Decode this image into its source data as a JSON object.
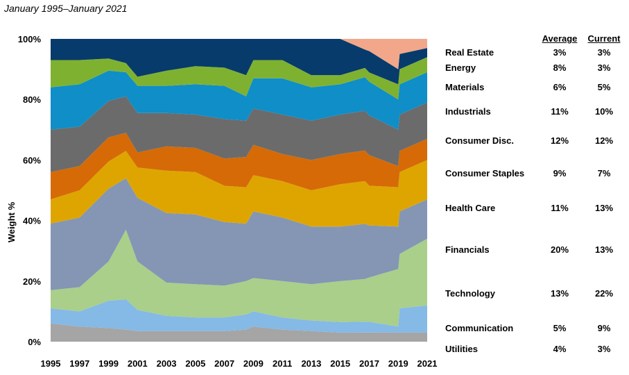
{
  "subtitle": "January 1995–January 2021",
  "chart_data": {
    "type": "area",
    "stacked": true,
    "normalized": true,
    "x_range": [
      1995,
      2021
    ],
    "ylabel": "Weight %",
    "ylim": [
      0,
      100
    ],
    "x_ticks": [
      "1995",
      "1997",
      "1999",
      "2001",
      "2003",
      "2005",
      "2007",
      "2009",
      "2011",
      "2013",
      "2015",
      "2017",
      "2019",
      "2021"
    ],
    "y_ticks": [
      "0%",
      "20%",
      "40%",
      "60%",
      "80%",
      "100%"
    ],
    "x": [
      1995,
      1997,
      1999,
      2000.2,
      2001,
      2003,
      2005,
      2007,
      2008.5,
      2009,
      2011,
      2013,
      2015,
      2016.7,
      2017,
      2019,
      2019.1,
      2021
    ],
    "series": [
      {
        "name": "Utilities",
        "color": "#a5a5a5",
        "values": [
          6,
          5,
          4.5,
          4,
          3.5,
          3.5,
          3.5,
          3.5,
          4,
          5,
          4,
          3.5,
          3,
          3,
          3,
          3,
          3,
          3
        ]
      },
      {
        "name": "Communication",
        "color": "#85b9e6",
        "values": [
          5,
          5,
          9,
          10,
          7,
          5,
          4.5,
          4.5,
          5,
          5,
          4,
          3.5,
          3.5,
          3.5,
          3.5,
          2,
          8,
          9
        ]
      },
      {
        "name": "Technology",
        "color": "#a9cf8a",
        "values": [
          6,
          8,
          13,
          23,
          16,
          11,
          11,
          10.5,
          11,
          11,
          12,
          12,
          13.5,
          14,
          14.5,
          19,
          18,
          22
        ]
      },
      {
        "name": "Financials",
        "color": "#8496b4",
        "values": [
          22,
          23,
          24,
          17,
          21,
          23,
          23,
          21,
          19,
          22,
          21,
          19,
          18,
          18,
          17,
          14,
          14,
          13
        ]
      },
      {
        "name": "Health Care",
        "color": "#dea500",
        "values": [
          8,
          9,
          9,
          9,
          10,
          14,
          14,
          12,
          12,
          12,
          12,
          12,
          14,
          14,
          13,
          13,
          13,
          13
        ]
      },
      {
        "name": "Consumer Staples",
        "color": "#d66a07",
        "values": [
          9,
          8,
          8,
          6,
          5,
          8,
          8,
          9,
          10,
          10,
          9,
          10,
          10,
          10,
          10,
          7,
          7,
          7
        ]
      },
      {
        "name": "Consumer Disc.",
        "color": "#6b6b6b",
        "values": [
          14,
          13,
          12,
          12,
          13,
          11,
          11,
          13,
          12,
          12,
          13,
          13,
          13,
          13,
          13,
          12,
          12,
          12
        ]
      },
      {
        "name": "Industrials",
        "color": "#0f8ec8",
        "values": [
          14,
          14,
          10,
          8,
          9,
          9,
          10,
          11,
          8,
          10,
          12,
          11,
          10,
          11,
          11,
          10,
          10,
          10
        ]
      },
      {
        "name": "Materials",
        "color": "#7fb131",
        "values": [
          9,
          8,
          4,
          3,
          3,
          5,
          6,
          6,
          7,
          6,
          6,
          4,
          3,
          3,
          3,
          5,
          5,
          5
        ]
      },
      {
        "name": "Energy",
        "color": "#073b6b",
        "values": [
          7,
          7,
          6.5,
          8,
          12.5,
          10.5,
          9,
          9.5,
          12,
          7,
          7,
          12,
          12,
          6,
          7,
          5,
          5,
          3
        ]
      },
      {
        "name": "Real Estate",
        "color": "#f2a78a",
        "values": [
          0,
          0,
          0,
          0,
          0,
          0,
          0,
          0,
          0,
          0,
          0,
          0,
          0,
          3.5,
          4,
          10,
          5,
          3
        ]
      }
    ],
    "table": {
      "headers": [
        "Average",
        "Current"
      ],
      "rows": [
        {
          "sector": "Real Estate",
          "average": "3%",
          "current": "3%"
        },
        {
          "sector": "Energy",
          "average": "8%",
          "current": "3%"
        },
        {
          "sector": "Materials",
          "average": "6%",
          "current": "5%"
        },
        {
          "sector": "Industrials",
          "average": "11%",
          "current": "10%"
        },
        {
          "sector": "Consumer Disc.",
          "average": "12%",
          "current": "12%"
        },
        {
          "sector": "Consumer Staples",
          "average": "9%",
          "current": "7%"
        },
        {
          "sector": "Health Care",
          "average": "11%",
          "current": "13%"
        },
        {
          "sector": "Financials",
          "average": "20%",
          "current": "13%"
        },
        {
          "sector": "Technology",
          "average": "13%",
          "current": "22%"
        },
        {
          "sector": "Communication",
          "average": "5%",
          "current": "9%"
        },
        {
          "sector": "Utilities",
          "average": "4%",
          "current": "3%"
        }
      ]
    }
  }
}
